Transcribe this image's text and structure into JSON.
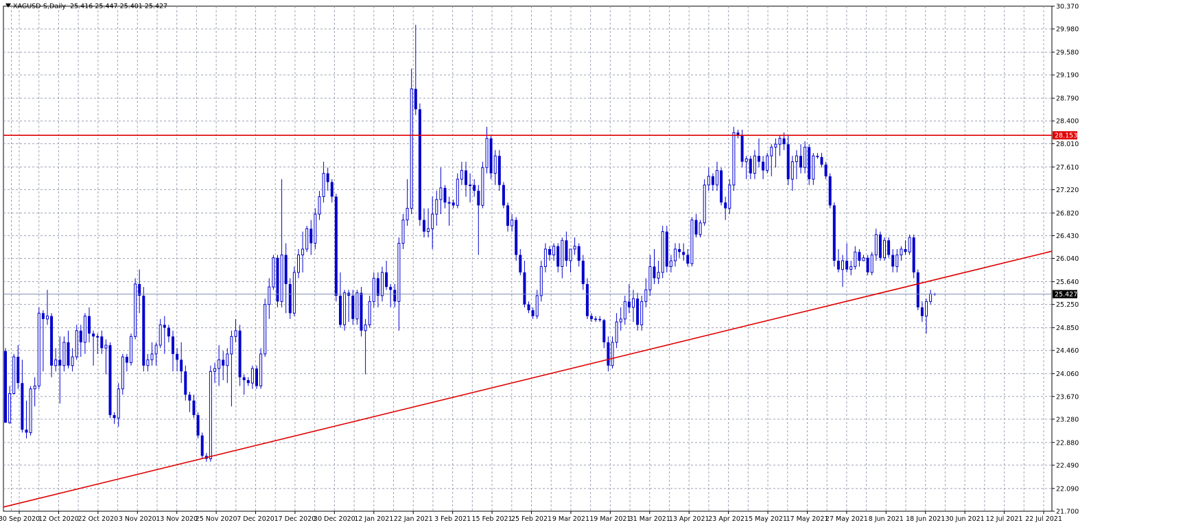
{
  "header": {
    "symbol_label": "XAGUSD-S,Daily",
    "ohlc_text": "25.416 25.447 25.401 25.427"
  },
  "colors": {
    "candle": "#0000cc",
    "grid": "#9aa0b4",
    "axis": "#000000",
    "hline": "#e00000",
    "trendline": "#e00000",
    "bid_line": "#7d8fb6",
    "price_label_bg": "#000000"
  },
  "chart_data": {
    "type": "candlestick",
    "title": "XAGUSD-S,Daily",
    "y_ticks": [
      "21.700",
      "22.090",
      "22.490",
      "22.880",
      "23.280",
      "23.670",
      "24.060",
      "24.460",
      "24.850",
      "25.250",
      "25.640",
      "26.040",
      "26.430",
      "26.820",
      "27.220",
      "27.610",
      "28.010",
      "28.400",
      "28.790",
      "29.190",
      "29.580",
      "29.980",
      "30.370"
    ],
    "ylim": [
      21.7,
      30.37
    ],
    "x_labels": [
      "30 Sep 2020",
      "12 Oct 2020",
      "22 Oct 2020",
      "3 Nov 2020",
      "13 Nov 2020",
      "25 Nov 2020",
      "7 Dec 2020",
      "17 Dec 2020",
      "30 Dec 2020",
      "12 Jan 2021",
      "22 Jan 2021",
      "3 Feb 2021",
      "15 Feb 2021",
      "25 Feb 2021",
      "9 Mar 2021",
      "19 Mar 2021",
      "31 Mar 2021",
      "13 Apr 2021",
      "23 Apr 2021",
      "5 May 2021",
      "17 May 2021",
      "27 May 2021",
      "8 Jun 2021",
      "18 Jun 2021",
      "30 Jun 2021",
      "12 Jul 2021",
      "22 Jul 2021"
    ],
    "grid": true,
    "horizontal_line": {
      "value": 28.153,
      "label": "28.153"
    },
    "current_price": {
      "value": 25.427,
      "label": "25.427"
    },
    "trendline": {
      "from": {
        "index": 0,
        "price": 21.78
      },
      "to": {
        "index": 211,
        "price": 25.48
      }
    },
    "candles": [
      [
        24.45,
        24.5,
        23.22,
        23.22
      ],
      [
        23.22,
        23.85,
        23.2,
        23.72
      ],
      [
        23.72,
        24.4,
        23.7,
        24.35
      ],
      [
        24.35,
        24.55,
        23.8,
        23.9
      ],
      [
        23.9,
        24.3,
        23.05,
        23.1
      ],
      [
        23.1,
        23.6,
        22.95,
        23.05
      ],
      [
        23.05,
        23.85,
        23.0,
        23.8
      ],
      [
        23.8,
        24.0,
        23.5,
        23.85
      ],
      [
        23.85,
        25.2,
        23.8,
        25.1
      ],
      [
        25.1,
        25.15,
        24.1,
        25.0
      ],
      [
        25.0,
        25.5,
        24.9,
        25.05
      ],
      [
        25.05,
        25.1,
        24.0,
        24.2
      ],
      [
        24.2,
        24.5,
        24.1,
        24.3
      ],
      [
        24.3,
        24.7,
        23.55,
        24.2
      ],
      [
        24.2,
        24.7,
        24.1,
        24.6
      ],
      [
        24.6,
        24.8,
        24.15,
        24.2
      ],
      [
        24.2,
        24.5,
        24.1,
        24.35
      ],
      [
        24.35,
        24.9,
        24.3,
        24.8
      ],
      [
        24.8,
        24.9,
        24.35,
        24.6
      ],
      [
        24.6,
        25.1,
        24.4,
        25.05
      ],
      [
        25.05,
        25.2,
        24.6,
        24.75
      ],
      [
        24.75,
        24.8,
        24.2,
        24.7
      ],
      [
        24.7,
        24.75,
        24.4,
        24.7
      ],
      [
        24.7,
        24.8,
        24.4,
        24.5
      ],
      [
        24.5,
        24.65,
        24.05,
        24.55
      ],
      [
        24.55,
        24.6,
        23.3,
        23.35
      ],
      [
        23.35,
        23.4,
        23.2,
        23.3
      ],
      [
        23.3,
        23.9,
        23.15,
        23.8
      ],
      [
        23.8,
        24.4,
        23.7,
        24.35
      ],
      [
        24.35,
        24.4,
        24.1,
        24.25
      ],
      [
        24.25,
        24.75,
        24.2,
        24.7
      ],
      [
        24.7,
        25.7,
        24.65,
        25.6
      ],
      [
        25.6,
        25.85,
        25.1,
        25.4
      ],
      [
        25.4,
        25.55,
        24.1,
        24.2
      ],
      [
        24.2,
        24.4,
        24.1,
        24.3
      ],
      [
        24.3,
        24.6,
        24.2,
        24.4
      ],
      [
        24.4,
        24.6,
        24.2,
        24.55
      ],
      [
        24.55,
        25.0,
        24.5,
        24.9
      ],
      [
        24.9,
        25.05,
        24.4,
        24.85
      ],
      [
        24.85,
        24.9,
        24.6,
        24.7
      ],
      [
        24.7,
        24.8,
        24.1,
        24.4
      ],
      [
        24.4,
        24.5,
        24.1,
        24.3
      ],
      [
        24.3,
        24.6,
        23.9,
        24.1
      ],
      [
        24.1,
        24.2,
        23.6,
        23.7
      ],
      [
        23.7,
        23.75,
        23.4,
        23.6
      ],
      [
        23.6,
        23.7,
        23.3,
        23.35
      ],
      [
        23.35,
        23.4,
        22.95,
        23.0
      ],
      [
        23.0,
        23.05,
        22.6,
        22.65
      ],
      [
        22.65,
        22.7,
        22.55,
        22.6
      ],
      [
        22.6,
        24.2,
        22.55,
        24.1
      ],
      [
        24.1,
        24.25,
        23.9,
        24.15
      ],
      [
        24.15,
        24.55,
        23.85,
        24.3
      ],
      [
        24.3,
        24.45,
        23.95,
        24.2
      ],
      [
        24.2,
        24.5,
        23.9,
        24.4
      ],
      [
        24.4,
        24.8,
        23.5,
        24.7
      ],
      [
        24.7,
        25.0,
        24.6,
        24.8
      ],
      [
        24.8,
        24.9,
        23.85,
        24.0
      ],
      [
        24.0,
        24.05,
        23.7,
        23.95
      ],
      [
        23.95,
        24.0,
        23.85,
        23.9
      ],
      [
        23.9,
        24.2,
        23.8,
        24.15
      ],
      [
        24.15,
        24.2,
        23.8,
        23.85
      ],
      [
        23.85,
        24.5,
        23.8,
        24.4
      ],
      [
        24.4,
        25.35,
        24.35,
        25.25
      ],
      [
        25.25,
        25.7,
        25.0,
        25.55
      ],
      [
        25.55,
        26.1,
        25.5,
        26.05
      ],
      [
        26.05,
        26.1,
        25.2,
        25.3
      ],
      [
        25.3,
        27.4,
        25.2,
        26.1
      ],
      [
        26.1,
        26.3,
        25.1,
        25.6
      ],
      [
        25.6,
        25.7,
        25.0,
        25.1
      ],
      [
        25.1,
        25.9,
        25.05,
        25.8
      ],
      [
        25.8,
        26.2,
        25.7,
        26.1
      ],
      [
        26.1,
        26.5,
        25.8,
        26.2
      ],
      [
        26.2,
        26.6,
        26.15,
        26.55
      ],
      [
        26.55,
        26.7,
        26.1,
        26.3
      ],
      [
        26.3,
        26.9,
        26.2,
        26.8
      ],
      [
        26.8,
        27.2,
        26.7,
        27.1
      ],
      [
        27.1,
        27.7,
        27.0,
        27.5
      ],
      [
        27.5,
        27.6,
        27.2,
        27.35
      ],
      [
        27.35,
        27.4,
        27.0,
        27.1
      ],
      [
        27.1,
        27.15,
        25.3,
        25.4
      ],
      [
        25.4,
        25.8,
        24.85,
        24.9
      ],
      [
        24.9,
        25.5,
        24.8,
        25.45
      ],
      [
        25.45,
        25.5,
        24.95,
        25.4
      ],
      [
        25.4,
        25.5,
        24.9,
        25.0
      ],
      [
        25.0,
        25.5,
        24.9,
        25.45
      ],
      [
        25.45,
        25.55,
        24.7,
        24.8
      ],
      [
        24.8,
        25.0,
        24.05,
        24.9
      ],
      [
        24.9,
        25.4,
        24.85,
        25.3
      ],
      [
        25.3,
        25.8,
        25.2,
        25.7
      ],
      [
        25.7,
        25.8,
        25.2,
        25.4
      ],
      [
        25.4,
        25.9,
        25.3,
        25.8
      ],
      [
        25.8,
        26.0,
        25.5,
        25.55
      ],
      [
        25.55,
        25.6,
        25.2,
        25.5
      ],
      [
        25.5,
        25.6,
        25.2,
        25.3
      ],
      [
        25.3,
        26.4,
        24.8,
        26.3
      ],
      [
        26.3,
        26.8,
        26.2,
        26.7
      ],
      [
        26.7,
        27.4,
        26.6,
        26.9
      ],
      [
        26.9,
        29.3,
        26.8,
        28.95
      ],
      [
        28.95,
        30.05,
        28.5,
        28.6
      ],
      [
        28.6,
        28.7,
        26.6,
        26.7
      ],
      [
        26.7,
        26.9,
        26.4,
        26.5
      ],
      [
        26.5,
        26.9,
        26.4,
        26.55
      ],
      [
        26.55,
        27.1,
        26.2,
        26.8
      ],
      [
        26.8,
        27.2,
        26.6,
        27.05
      ],
      [
        27.05,
        27.6,
        26.8,
        27.25
      ],
      [
        27.25,
        27.3,
        26.9,
        27.0
      ],
      [
        27.0,
        27.1,
        26.6,
        27.0
      ],
      [
        27.0,
        27.05,
        26.9,
        26.95
      ],
      [
        26.95,
        27.5,
        26.9,
        27.4
      ],
      [
        27.4,
        27.7,
        27.3,
        27.55
      ],
      [
        27.55,
        27.7,
        27.1,
        27.3
      ],
      [
        27.3,
        27.5,
        27.0,
        27.3
      ],
      [
        27.3,
        27.4,
        27.1,
        27.2
      ],
      [
        27.2,
        27.3,
        26.1,
        26.95
      ],
      [
        26.95,
        27.7,
        26.9,
        27.6
      ],
      [
        27.6,
        28.3,
        27.5,
        28.1
      ],
      [
        28.1,
        28.15,
        27.4,
        27.5
      ],
      [
        27.5,
        27.9,
        27.3,
        27.8
      ],
      [
        27.8,
        27.9,
        27.2,
        27.3
      ],
      [
        27.3,
        27.35,
        26.9,
        26.95
      ],
      [
        26.95,
        27.0,
        26.5,
        26.6
      ],
      [
        26.6,
        26.8,
        26.5,
        26.7
      ],
      [
        26.7,
        26.75,
        26.0,
        26.1
      ],
      [
        26.1,
        26.2,
        25.75,
        25.8
      ],
      [
        25.8,
        26.0,
        25.2,
        25.25
      ],
      [
        25.25,
        25.3,
        25.1,
        25.15
      ],
      [
        25.15,
        25.2,
        25.0,
        25.05
      ],
      [
        25.05,
        25.5,
        25.0,
        25.4
      ],
      [
        25.4,
        26.0,
        25.3,
        25.9
      ],
      [
        25.9,
        26.3,
        25.8,
        26.2
      ],
      [
        26.2,
        26.25,
        26.0,
        26.1
      ],
      [
        26.1,
        26.3,
        26.0,
        26.25
      ],
      [
        26.25,
        26.3,
        25.8,
        25.9
      ],
      [
        25.9,
        26.4,
        25.7,
        26.35
      ],
      [
        26.35,
        26.5,
        25.9,
        26.0
      ],
      [
        26.0,
        26.2,
        25.8,
        26.2
      ],
      [
        26.2,
        26.4,
        26.1,
        26.25
      ],
      [
        26.25,
        26.3,
        25.9,
        26.0
      ],
      [
        26.0,
        26.1,
        25.5,
        25.6
      ],
      [
        25.6,
        25.7,
        25.0,
        25.05
      ],
      [
        25.05,
        25.1,
        24.95,
        25.0
      ],
      [
        25.0,
        25.05,
        24.95,
        25.0
      ],
      [
        25.0,
        25.05,
        24.95,
        24.98
      ],
      [
        24.98,
        25.0,
        24.5,
        24.6
      ],
      [
        24.6,
        24.7,
        24.1,
        24.2
      ],
      [
        24.2,
        24.7,
        24.15,
        24.6
      ],
      [
        24.6,
        25.1,
        24.5,
        24.95
      ],
      [
        24.95,
        25.2,
        24.8,
        25.0
      ],
      [
        25.0,
        25.4,
        24.9,
        25.3
      ],
      [
        25.3,
        25.6,
        25.1,
        25.2
      ],
      [
        25.2,
        25.5,
        24.95,
        25.35
      ],
      [
        25.35,
        25.45,
        24.8,
        24.9
      ],
      [
        24.9,
        25.4,
        24.8,
        25.3
      ],
      [
        25.3,
        25.7,
        25.2,
        25.5
      ],
      [
        25.5,
        26.1,
        25.4,
        25.9
      ],
      [
        25.9,
        26.2,
        25.6,
        25.7
      ],
      [
        25.7,
        26.0,
        25.6,
        25.8
      ],
      [
        25.8,
        26.6,
        25.7,
        26.5
      ],
      [
        26.5,
        26.6,
        25.8,
        25.9
      ],
      [
        25.9,
        26.1,
        25.8,
        26.0
      ],
      [
        26.0,
        26.3,
        25.9,
        26.2
      ],
      [
        26.2,
        26.3,
        26.05,
        26.15
      ],
      [
        26.15,
        26.3,
        26.0,
        26.1
      ],
      [
        26.1,
        26.2,
        25.9,
        25.95
      ],
      [
        25.95,
        26.75,
        25.9,
        26.7
      ],
      [
        26.7,
        26.8,
        26.4,
        26.45
      ],
      [
        26.45,
        26.7,
        26.4,
        26.65
      ],
      [
        26.65,
        27.4,
        26.6,
        27.3
      ],
      [
        27.3,
        27.6,
        27.2,
        27.45
      ],
      [
        27.45,
        27.5,
        27.2,
        27.3
      ],
      [
        27.3,
        27.7,
        27.2,
        27.55
      ],
      [
        27.55,
        27.6,
        26.95,
        27.0
      ],
      [
        27.0,
        27.1,
        26.7,
        26.9
      ],
      [
        26.9,
        27.4,
        26.8,
        27.3
      ],
      [
        27.3,
        28.3,
        27.2,
        28.2
      ],
      [
        28.2,
        28.25,
        28.1,
        28.15
      ],
      [
        28.15,
        28.25,
        27.6,
        27.7
      ],
      [
        27.7,
        27.8,
        27.4,
        27.75
      ],
      [
        27.75,
        27.8,
        27.4,
        27.5
      ],
      [
        27.5,
        27.9,
        27.4,
        27.8
      ],
      [
        27.8,
        28.1,
        27.6,
        27.7
      ],
      [
        27.7,
        27.8,
        27.4,
        27.55
      ],
      [
        27.55,
        27.85,
        27.5,
        27.8
      ],
      [
        27.8,
        28.0,
        27.45,
        27.95
      ],
      [
        27.95,
        28.1,
        27.6,
        28.0
      ],
      [
        28.0,
        28.15,
        27.8,
        28.1
      ],
      [
        28.1,
        28.2,
        27.9,
        28.0
      ],
      [
        28.0,
        28.15,
        27.3,
        27.4
      ],
      [
        27.4,
        27.8,
        27.2,
        27.7
      ],
      [
        27.7,
        27.9,
        27.4,
        27.8
      ],
      [
        27.8,
        28.0,
        27.5,
        27.6
      ],
      [
        27.6,
        28.05,
        27.5,
        27.95
      ],
      [
        27.95,
        28.0,
        27.3,
        27.4
      ],
      [
        27.4,
        27.85,
        27.3,
        27.8
      ],
      [
        27.8,
        27.85,
        27.75,
        27.78
      ],
      [
        27.78,
        27.85,
        27.6,
        27.65
      ],
      [
        27.65,
        27.7,
        27.4,
        27.45
      ],
      [
        27.45,
        27.5,
        26.9,
        26.95
      ],
      [
        26.95,
        27.0,
        25.9,
        26.0
      ],
      [
        26.0,
        26.2,
        25.8,
        25.85
      ],
      [
        25.85,
        26.1,
        25.55,
        26.0
      ],
      [
        26.0,
        26.3,
        25.8,
        25.85
      ],
      [
        25.85,
        26.0,
        25.75,
        25.9
      ],
      [
        25.9,
        26.25,
        25.85,
        26.15
      ],
      [
        26.15,
        26.2,
        25.9,
        26.0
      ],
      [
        26.0,
        26.1,
        26.0,
        26.05
      ],
      [
        26.05,
        26.1,
        25.75,
        25.8
      ],
      [
        25.8,
        26.15,
        25.75,
        26.1
      ],
      [
        26.1,
        26.55,
        26.0,
        26.45
      ],
      [
        26.45,
        26.5,
        26.0,
        26.05
      ],
      [
        26.05,
        26.4,
        26.0,
        26.35
      ],
      [
        26.35,
        26.4,
        26.05,
        26.1
      ],
      [
        26.1,
        26.2,
        25.8,
        25.9
      ],
      [
        25.9,
        26.2,
        25.8,
        26.1
      ],
      [
        26.1,
        26.25,
        26.0,
        26.2
      ],
      [
        26.2,
        26.35,
        26.1,
        26.15
      ],
      [
        26.15,
        26.45,
        26.1,
        26.4
      ],
      [
        26.4,
        26.45,
        25.7,
        25.8
      ],
      [
        25.8,
        25.85,
        25.15,
        25.2
      ],
      [
        25.2,
        25.3,
        24.95,
        25.05
      ],
      [
        25.05,
        25.35,
        24.75,
        25.3
      ],
      [
        25.3,
        25.5,
        25.25,
        25.43
      ],
      [
        25.43,
        25.45,
        25.4,
        25.427
      ]
    ]
  }
}
